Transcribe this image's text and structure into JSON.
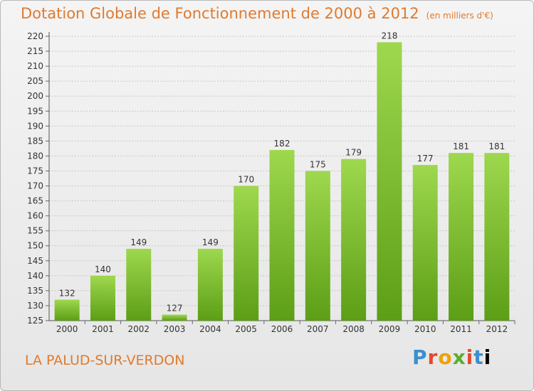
{
  "header": {
    "title": "Dotation Globale de Fonctionnement de 2000 à 2012",
    "unit": "(en milliers d'€)"
  },
  "footer": {
    "commune": "LA PALUD-SUR-VERDON",
    "logo_letters": [
      "P",
      "r",
      "o",
      "x",
      "i",
      "t",
      "i"
    ]
  },
  "colors": {
    "title": "#e07a2e",
    "bar_top": "#9ed84e",
    "bar_bottom": "#5c9e16"
  },
  "chart_data": {
    "type": "bar",
    "categories": [
      "2000",
      "2001",
      "2002",
      "2003",
      "2004",
      "2005",
      "2006",
      "2007",
      "2008",
      "2009",
      "2010",
      "2011",
      "2012"
    ],
    "values": [
      132,
      140,
      149,
      127,
      149,
      170,
      182,
      175,
      179,
      218,
      177,
      181,
      181
    ],
    "data_labels": [
      "132",
      "140",
      "149",
      "127",
      "149",
      "170",
      "182",
      "175",
      "179",
      "218",
      "177",
      "181",
      "181"
    ],
    "yticks": [
      "125",
      "130",
      "135",
      "140",
      "145",
      "150",
      "155",
      "160",
      "165",
      "170",
      "175",
      "180",
      "185",
      "190",
      "195",
      "200",
      "205",
      "210",
      "215",
      "220"
    ],
    "ylim": [
      125,
      220
    ],
    "grid": true,
    "legend": "none"
  }
}
